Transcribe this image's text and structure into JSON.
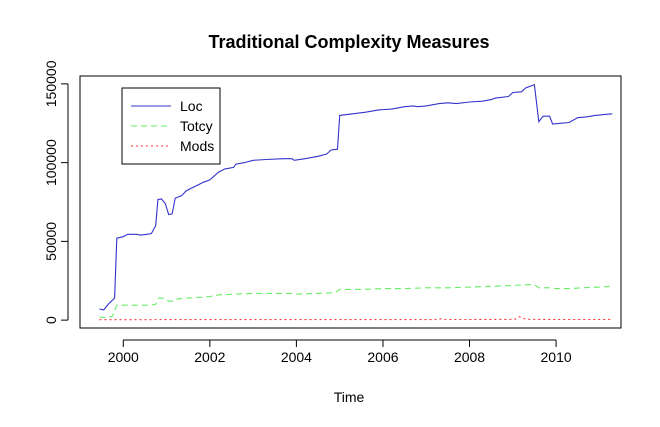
{
  "chart_data": {
    "type": "line",
    "title": "Traditional Complexity Measures",
    "xlabel": "Time",
    "ylabel": "",
    "xlim": [
      1999.0,
      2011.5
    ],
    "ylim": [
      -5000,
      155000
    ],
    "x_ticks": [
      2000,
      2002,
      2004,
      2006,
      2008,
      2010
    ],
    "x_tick_labels": [
      "2000",
      "2002",
      "2004",
      "2006",
      "2008",
      "2010"
    ],
    "y_ticks": [
      0,
      50000,
      100000,
      150000
    ],
    "y_tick_labels": [
      "0",
      "50000",
      "100000",
      "150000"
    ],
    "legend_position": "top-left",
    "series": [
      {
        "name": "Loc",
        "color": "#3333cc",
        "dash": "solid",
        "points": [
          [
            1999.45,
            7000
          ],
          [
            1999.55,
            6500
          ],
          [
            1999.65,
            10000
          ],
          [
            1999.8,
            14000
          ],
          [
            1999.85,
            52000
          ],
          [
            2000.0,
            53000
          ],
          [
            2000.1,
            54500
          ],
          [
            2000.3,
            54500
          ],
          [
            2000.4,
            54000
          ],
          [
            2000.55,
            54500
          ],
          [
            2000.65,
            55000
          ],
          [
            2000.75,
            60000
          ],
          [
            2000.8,
            76500
          ],
          [
            2000.88,
            77000
          ],
          [
            2000.97,
            74000
          ],
          [
            2001.05,
            67000
          ],
          [
            2001.13,
            67500
          ],
          [
            2001.2,
            77500
          ],
          [
            2001.35,
            79000
          ],
          [
            2001.45,
            82000
          ],
          [
            2001.55,
            83500
          ],
          [
            2001.7,
            85500
          ],
          [
            2001.85,
            87500
          ],
          [
            2002.0,
            89000
          ],
          [
            2002.2,
            94000
          ],
          [
            2002.35,
            96000
          ],
          [
            2002.55,
            97000
          ],
          [
            2002.6,
            99000
          ],
          [
            2002.8,
            100000
          ],
          [
            2003.0,
            101500
          ],
          [
            2003.3,
            102000
          ],
          [
            2003.7,
            102500
          ],
          [
            2003.9,
            102500
          ],
          [
            2003.95,
            101500
          ],
          [
            2004.2,
            102500
          ],
          [
            2004.5,
            104000
          ],
          [
            2004.7,
            105500
          ],
          [
            2004.8,
            108000
          ],
          [
            2004.95,
            108500
          ],
          [
            2005.0,
            130000
          ],
          [
            2005.3,
            131000
          ],
          [
            2005.6,
            132000
          ],
          [
            2005.9,
            133500
          ],
          [
            2006.2,
            134000
          ],
          [
            2006.5,
            135500
          ],
          [
            2006.7,
            136000
          ],
          [
            2006.8,
            135500
          ],
          [
            2007.0,
            136000
          ],
          [
            2007.3,
            137500
          ],
          [
            2007.5,
            138000
          ],
          [
            2007.7,
            137500
          ],
          [
            2008.0,
            138500
          ],
          [
            2008.3,
            139000
          ],
          [
            2008.5,
            140000
          ],
          [
            2008.6,
            141000
          ],
          [
            2008.9,
            142000
          ],
          [
            2009.0,
            144500
          ],
          [
            2009.2,
            145000
          ],
          [
            2009.3,
            147500
          ],
          [
            2009.5,
            149500
          ],
          [
            2009.6,
            126000
          ],
          [
            2009.7,
            129500
          ],
          [
            2009.85,
            129500
          ],
          [
            2009.92,
            124500
          ],
          [
            2010.1,
            125000
          ],
          [
            2010.3,
            125500
          ],
          [
            2010.5,
            128500
          ],
          [
            2010.7,
            129000
          ],
          [
            2010.9,
            130000
          ],
          [
            2011.1,
            130500
          ],
          [
            2011.3,
            131000
          ]
        ]
      },
      {
        "name": "Totcy",
        "color": "#66ee66",
        "dash": "dashed",
        "points": [
          [
            1999.45,
            2000
          ],
          [
            1999.6,
            1500
          ],
          [
            1999.75,
            2500
          ],
          [
            1999.85,
            9500
          ],
          [
            2000.2,
            9500
          ],
          [
            2000.6,
            9500
          ],
          [
            2000.75,
            10000
          ],
          [
            2000.82,
            14000
          ],
          [
            2000.92,
            14000
          ],
          [
            2001.05,
            12000
          ],
          [
            2001.15,
            12000
          ],
          [
            2001.25,
            13500
          ],
          [
            2001.5,
            14000
          ],
          [
            2001.8,
            14500
          ],
          [
            2002.0,
            15000
          ],
          [
            2002.2,
            16000
          ],
          [
            2002.6,
            16500
          ],
          [
            2003.0,
            17000
          ],
          [
            2003.5,
            17000
          ],
          [
            2003.9,
            17000
          ],
          [
            2004.0,
            16500
          ],
          [
            2004.5,
            17000
          ],
          [
            2004.9,
            17500
          ],
          [
            2005.0,
            19500
          ],
          [
            2005.5,
            19500
          ],
          [
            2006.0,
            20000
          ],
          [
            2006.5,
            20000
          ],
          [
            2007.0,
            20500
          ],
          [
            2007.5,
            20500
          ],
          [
            2008.0,
            21000
          ],
          [
            2008.5,
            21500
          ],
          [
            2009.0,
            22000
          ],
          [
            2009.3,
            22500
          ],
          [
            2009.5,
            22500
          ],
          [
            2009.6,
            20500
          ],
          [
            2009.9,
            20500
          ],
          [
            2010.0,
            20000
          ],
          [
            2010.3,
            20000
          ],
          [
            2010.6,
            20500
          ],
          [
            2011.0,
            21000
          ],
          [
            2011.3,
            21500
          ]
        ]
      },
      {
        "name": "Mods",
        "color": "#ff3333",
        "dash": "dotted",
        "points": [
          [
            1999.45,
            300
          ],
          [
            2000.0,
            300
          ],
          [
            2001.0,
            350
          ],
          [
            2002.0,
            350
          ],
          [
            2003.0,
            350
          ],
          [
            2004.0,
            350
          ],
          [
            2005.0,
            350
          ],
          [
            2006.0,
            350
          ],
          [
            2007.0,
            350
          ],
          [
            2007.25,
            400
          ],
          [
            2007.35,
            900
          ],
          [
            2007.45,
            400
          ],
          [
            2008.0,
            400
          ],
          [
            2008.9,
            450
          ],
          [
            2009.05,
            600
          ],
          [
            2009.15,
            2200
          ],
          [
            2009.3,
            600
          ],
          [
            2009.5,
            450
          ],
          [
            2010.0,
            400
          ],
          [
            2011.3,
            400
          ]
        ]
      }
    ]
  }
}
